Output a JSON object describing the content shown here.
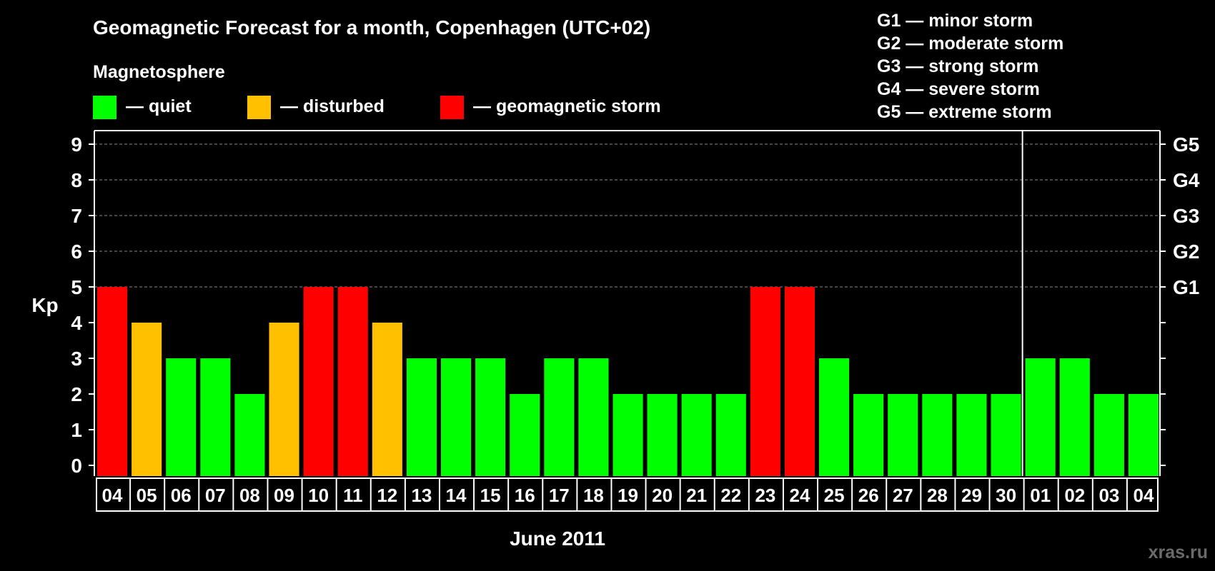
{
  "chart_data": {
    "type": "bar",
    "title": "Geomagnetic Forecast for a month, Copenhagen (UTC+02)",
    "legend_title": "Magnetosphere",
    "legend": [
      {
        "key": "quiet",
        "label": "— quiet",
        "color": "#00ff00"
      },
      {
        "key": "disturbed",
        "label": "— disturbed",
        "color": "#ffc000"
      },
      {
        "key": "storm",
        "label": "— geomagnetic storm",
        "color": "#ff0000"
      }
    ],
    "storm_scale": [
      "G1 — minor storm",
      "G2 — moderate storm",
      "G3 — strong storm",
      "G4 — severe storm",
      "G5 — extreme storm"
    ],
    "ylabel": "Kp",
    "ylim": [
      0,
      9
    ],
    "yticks": [
      0,
      1,
      2,
      3,
      4,
      5,
      6,
      7,
      8,
      9
    ],
    "right_axis_labels": [
      {
        "kp": 5,
        "label": "G1"
      },
      {
        "kp": 6,
        "label": "G2"
      },
      {
        "kp": 7,
        "label": "G3"
      },
      {
        "kp": 8,
        "label": "G4"
      },
      {
        "kp": 9,
        "label": "G5"
      }
    ],
    "xlabel": "June 2011",
    "grid_dashed_from_kp": 5,
    "month_divider_after_index": 26,
    "categories": [
      "04",
      "05",
      "06",
      "07",
      "08",
      "09",
      "10",
      "11",
      "12",
      "13",
      "14",
      "15",
      "16",
      "17",
      "18",
      "19",
      "20",
      "21",
      "22",
      "23",
      "24",
      "25",
      "26",
      "27",
      "28",
      "29",
      "30",
      "01",
      "02",
      "03",
      "04"
    ],
    "values": [
      5,
      4,
      3,
      3,
      2,
      4,
      5,
      5,
      4,
      3,
      3,
      3,
      2,
      3,
      3,
      2,
      2,
      2,
      2,
      5,
      5,
      3,
      2,
      2,
      2,
      2,
      2,
      3,
      3,
      2,
      2
    ],
    "levels": [
      "storm",
      "disturbed",
      "quiet",
      "quiet",
      "quiet",
      "disturbed",
      "storm",
      "storm",
      "disturbed",
      "quiet",
      "quiet",
      "quiet",
      "quiet",
      "quiet",
      "quiet",
      "quiet",
      "quiet",
      "quiet",
      "quiet",
      "storm",
      "storm",
      "quiet",
      "quiet",
      "quiet",
      "quiet",
      "quiet",
      "quiet",
      "quiet",
      "quiet",
      "quiet",
      "quiet"
    ]
  },
  "watermark": "xras.ru"
}
